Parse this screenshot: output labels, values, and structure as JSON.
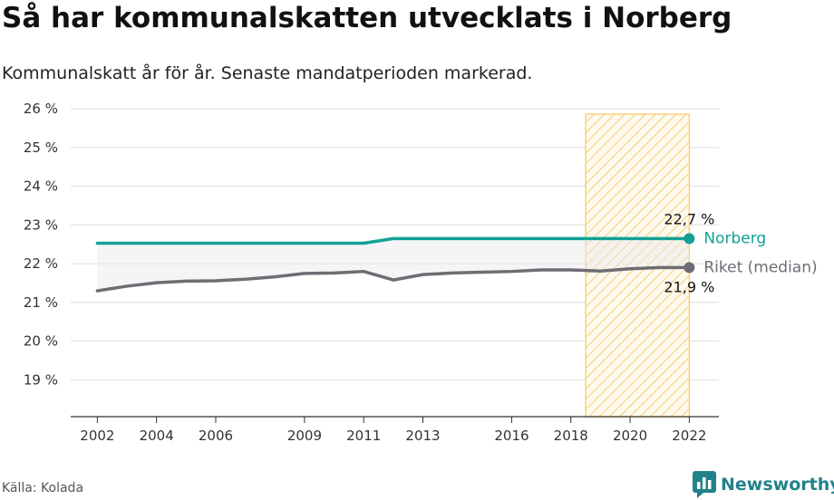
{
  "title": "Så har kommunalskatten utvecklats i Norberg",
  "subtitle": "Kommunalskatt år för år. Senaste mandatperioden markerad.",
  "source": "Källa: Kolada",
  "brand": {
    "name": "Newsworthy",
    "icon": "newsworthy-logo-icon",
    "color": "#23818a"
  },
  "colors": {
    "norberg": "#14a195",
    "riket": "#6e6d74",
    "period": "#f7d27e",
    "grid": "#dddddd"
  },
  "chart_data": {
    "type": "line",
    "x": [
      2002,
      2003,
      2004,
      2005,
      2006,
      2007,
      2008,
      2009,
      2010,
      2011,
      2012,
      2013,
      2014,
      2015,
      2016,
      2017,
      2018,
      2019,
      2020,
      2021,
      2022
    ],
    "x_ticks": [
      2002,
      2004,
      2006,
      2009,
      2011,
      2013,
      2016,
      2018,
      2020,
      2022
    ],
    "y_ticks": [
      19,
      20,
      21,
      22,
      23,
      24,
      25,
      26
    ],
    "y_tick_labels": [
      "19 %",
      "20 %",
      "21 %",
      "22 %",
      "23 %",
      "24 %",
      "25 %",
      "26 %"
    ],
    "ylim": [
      18.05,
      26.05
    ],
    "xlim": [
      2001.1,
      2023.0
    ],
    "grid": true,
    "series": [
      {
        "name": "Norberg",
        "values": [
          22.53,
          22.53,
          22.53,
          22.53,
          22.53,
          22.53,
          22.53,
          22.53,
          22.53,
          22.53,
          22.65,
          22.65,
          22.65,
          22.65,
          22.65,
          22.65,
          22.65,
          22.65,
          22.65,
          22.65,
          22.65
        ],
        "end_label": "22,7 %"
      },
      {
        "name": "Riket (median)",
        "values": [
          21.3,
          21.42,
          21.51,
          21.55,
          21.56,
          21.6,
          21.66,
          21.75,
          21.76,
          21.8,
          21.58,
          21.72,
          21.76,
          21.78,
          21.8,
          21.84,
          21.84,
          21.81,
          21.87,
          21.9,
          21.9
        ],
        "end_label": "21,9 %"
      }
    ],
    "highlight_period": [
      2018.5,
      2022
    ],
    "xlabel": "",
    "ylabel": ""
  }
}
